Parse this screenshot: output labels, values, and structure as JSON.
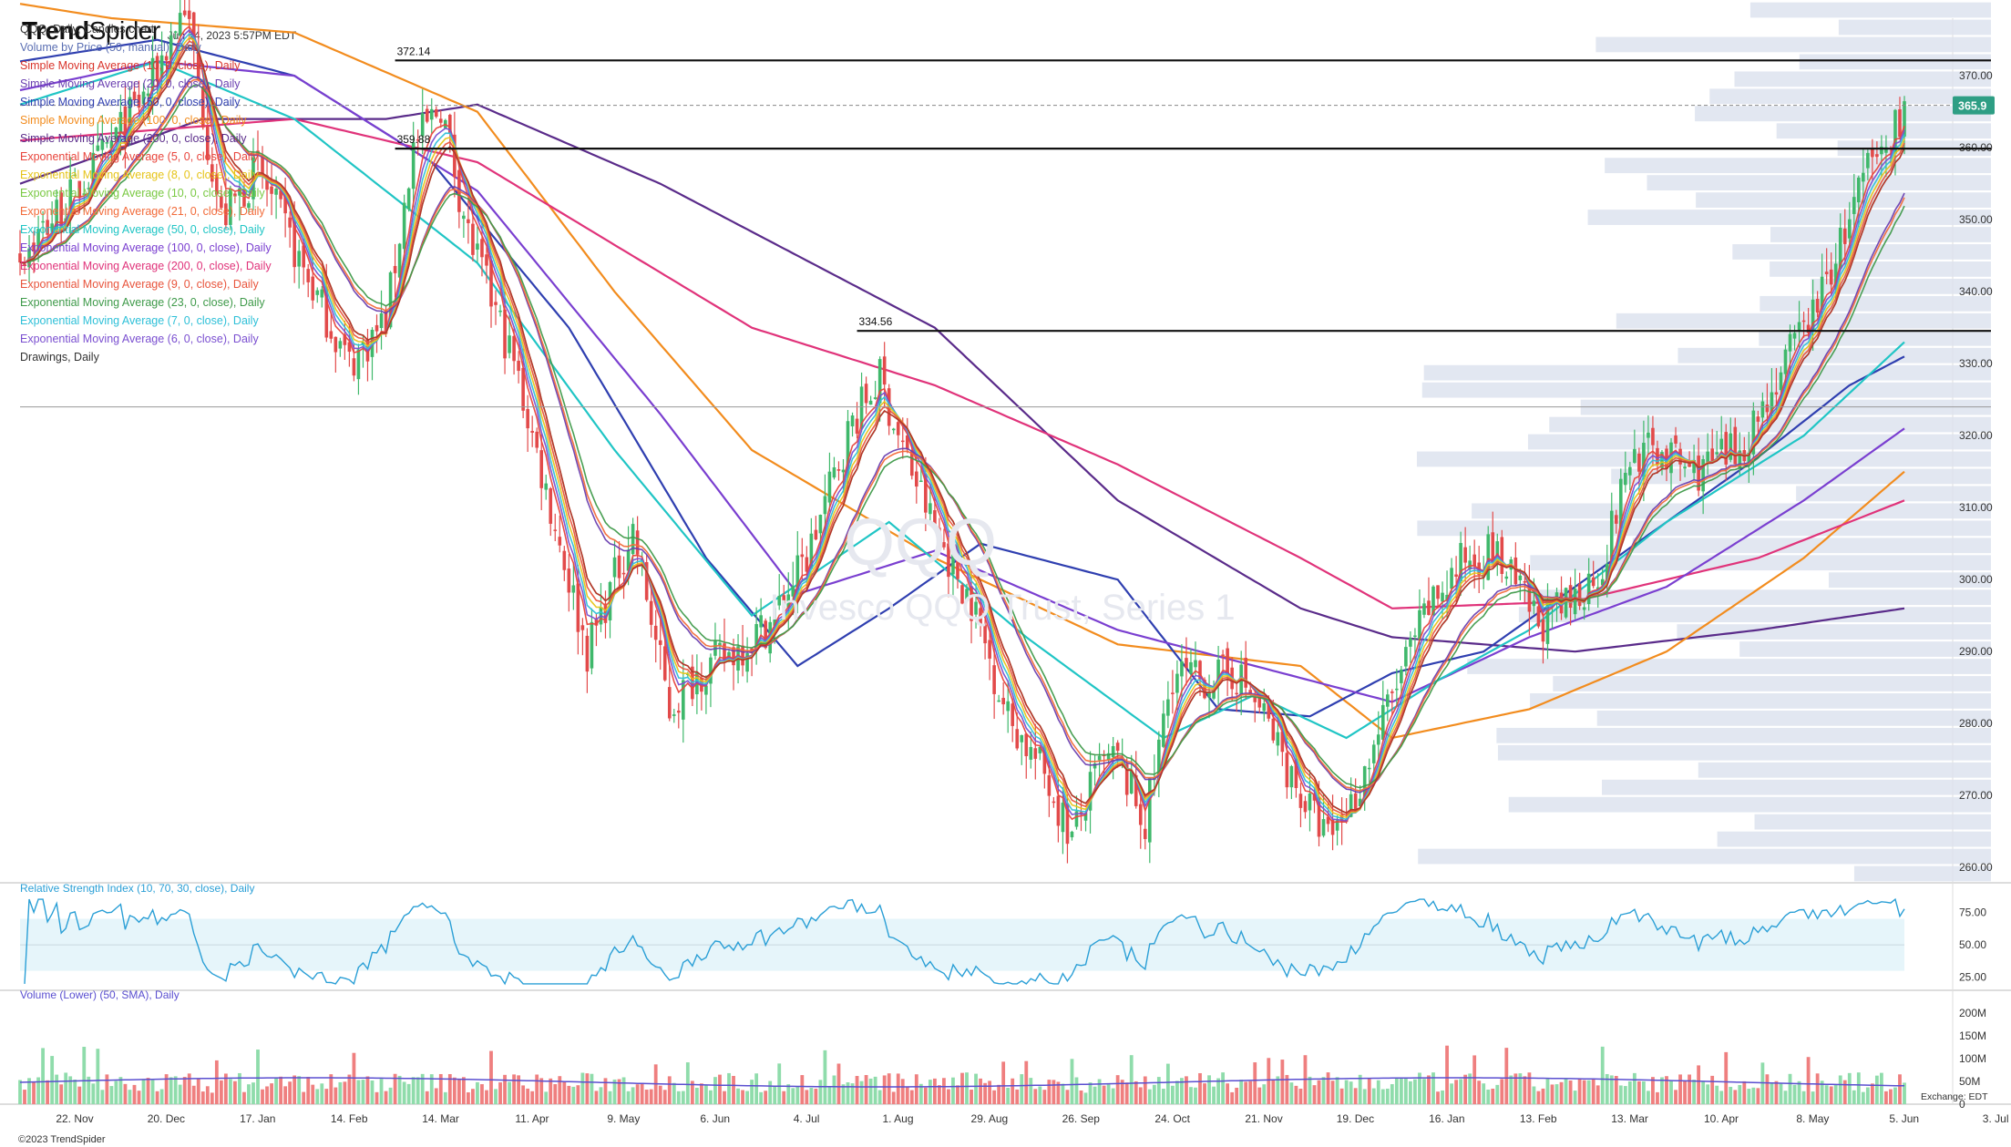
{
  "brand": {
    "logo_bold": "Trend",
    "logo_light": "Spider",
    "timestamp": "Jun 14, 2023 5:57PM EDT"
  },
  "legend": [
    {
      "text": "QQQ, Daily, Candles chart",
      "color": "#333333"
    },
    {
      "text": "Volume by Price (50, manual), Daily",
      "color": "#5b6fb3"
    },
    {
      "text": "Simple Moving Average (10, 0, close), Daily",
      "color": "#d9342b"
    },
    {
      "text": "Simple Moving Average (20, 0, close), Daily",
      "color": "#6a3fb0"
    },
    {
      "text": "Simple Moving Average (50, 0, close), Daily",
      "color": "#2f3fb0"
    },
    {
      "text": "Simple Moving Average (100, 0, close), Daily",
      "color": "#f28c1e"
    },
    {
      "text": "Simple Moving Average (200, 0, close), Daily",
      "color": "#5a2b8a"
    },
    {
      "text": "Exponential Moving Average (5, 0, close), Daily",
      "color": "#e8453c"
    },
    {
      "text": "Exponential Moving Average (8, 0, close), Daily",
      "color": "#e6c419"
    },
    {
      "text": "Exponential Moving Average (10, 0, close), Daily",
      "color": "#7ac943"
    },
    {
      "text": "Exponential Moving Average (21, 0, close), Daily",
      "color": "#f26b3a"
    },
    {
      "text": "Exponential Moving Average (50, 0, close), Daily",
      "color": "#20c5c5"
    },
    {
      "text": "Exponential Moving Average (100, 0, close), Daily",
      "color": "#7a3fd0"
    },
    {
      "text": "Exponential Moving Average (200, 0, close), Daily",
      "color": "#e0337a"
    },
    {
      "text": "Exponential Moving Average (9, 0, close), Daily",
      "color": "#e8543c"
    },
    {
      "text": "Exponential Moving Average (23, 0, close), Daily",
      "color": "#3f9a4a"
    },
    {
      "text": "Exponential Moving Average (7, 0, close), Daily",
      "color": "#2fc0d8"
    },
    {
      "text": "Exponential Moving Average (6, 0, close), Daily",
      "color": "#7a4fd0"
    },
    {
      "text": "Drawings, Daily",
      "color": "#333333"
    }
  ],
  "watermark": {
    "symbol": "QQQ",
    "name": "Invesco QQQ Trust, Series 1"
  },
  "chart_data": {
    "type": "candlestick",
    "symbol": "QQQ",
    "ylim": [
      258,
      378
    ],
    "y_ticks": [
      "260.00",
      "270.00",
      "280.00",
      "290.00",
      "300.00",
      "310.00",
      "320.00",
      "330.00",
      "340.00",
      "350.00",
      "360.00",
      "370.00"
    ],
    "y_tick_values": [
      260,
      270,
      280,
      290,
      300,
      310,
      320,
      330,
      340,
      350,
      360,
      370
    ],
    "x_labels": [
      "22. Nov",
      "20. Dec",
      "17. Jan",
      "14. Feb",
      "14. Mar",
      "11. Apr",
      "9. May",
      "6. Jun",
      "4. Jul",
      "1. Aug",
      "29. Aug",
      "26. Sep",
      "24. Oct",
      "21. Nov",
      "19. Dec",
      "16. Jan",
      "13. Feb",
      "13. Mar",
      "10. Apr",
      "8. May",
      "5. Jun",
      "3. Jul"
    ],
    "x_label_index": [
      0,
      20,
      40,
      60,
      80,
      100,
      120,
      140,
      160,
      180,
      200,
      220,
      240,
      260,
      280,
      300,
      320,
      340,
      360,
      380,
      400,
      420
    ],
    "n_bars": 413,
    "price_anchors": [
      [
        0,
        345
      ],
      [
        15,
        356
      ],
      [
        28,
        368
      ],
      [
        36,
        380
      ],
      [
        44,
        350
      ],
      [
        52,
        357
      ],
      [
        62,
        343
      ],
      [
        72,
        330
      ],
      [
        80,
        336
      ],
      [
        86,
        360
      ],
      [
        92,
        366
      ],
      [
        98,
        348
      ],
      [
        108,
        330
      ],
      [
        118,
        305
      ],
      [
        124,
        290
      ],
      [
        134,
        307
      ],
      [
        142,
        282
      ],
      [
        148,
        287
      ],
      [
        156,
        290
      ],
      [
        164,
        294
      ],
      [
        172,
        303
      ],
      [
        182,
        322
      ],
      [
        188,
        328
      ],
      [
        192,
        320
      ],
      [
        200,
        307
      ],
      [
        208,
        297
      ],
      [
        216,
        281
      ],
      [
        224,
        273
      ],
      [
        230,
        264
      ],
      [
        236,
        274
      ],
      [
        240,
        275
      ],
      [
        246,
        266
      ],
      [
        252,
        287
      ],
      [
        258,
        286
      ],
      [
        266,
        287
      ],
      [
        272,
        281
      ],
      [
        280,
        270
      ],
      [
        286,
        264
      ],
      [
        292,
        270
      ],
      [
        300,
        284
      ],
      [
        308,
        296
      ],
      [
        316,
        303
      ],
      [
        322,
        304
      ],
      [
        326,
        300
      ],
      [
        332,
        294
      ],
      [
        338,
        296
      ],
      [
        346,
        302
      ],
      [
        352,
        317
      ],
      [
        358,
        318
      ],
      [
        366,
        315
      ],
      [
        376,
        318
      ],
      [
        386,
        330
      ],
      [
        394,
        340
      ],
      [
        400,
        350
      ],
      [
        404,
        357
      ],
      [
        408,
        360
      ],
      [
        412,
        366
      ]
    ],
    "last_price": "365.9",
    "horizontal_levels": [
      {
        "value": 372.14,
        "label": "372.14",
        "from_index": 82
      },
      {
        "value": 359.88,
        "label": "359.88",
        "from_index": 82
      },
      {
        "value": 334.56,
        "label": "334.56",
        "from_index": 183
      }
    ],
    "dashed_level": 365.9,
    "ma_series": [
      {
        "name": "SMA 200",
        "color": "#5a2b8a",
        "anchors": [
          [
            0,
            355
          ],
          [
            40,
            364
          ],
          [
            80,
            364
          ],
          [
            100,
            366
          ],
          [
            140,
            355
          ],
          [
            200,
            335
          ],
          [
            240,
            311
          ],
          [
            280,
            296
          ],
          [
            300,
            292
          ],
          [
            340,
            290
          ],
          [
            380,
            293
          ],
          [
            412,
            296
          ]
        ]
      },
      {
        "name": "SMA 100",
        "color": "#f28c1e",
        "anchors": [
          [
            0,
            380
          ],
          [
            20,
            378
          ],
          [
            60,
            376
          ],
          [
            100,
            365
          ],
          [
            130,
            340
          ],
          [
            160,
            318
          ],
          [
            200,
            303
          ],
          [
            240,
            291
          ],
          [
            280,
            288
          ],
          [
            300,
            278
          ],
          [
            330,
            282
          ],
          [
            360,
            290
          ],
          [
            390,
            303
          ],
          [
            412,
            315
          ]
        ]
      },
      {
        "name": "EMA 200",
        "color": "#e0337a",
        "anchors": [
          [
            0,
            361
          ],
          [
            60,
            364
          ],
          [
            100,
            358
          ],
          [
            160,
            335
          ],
          [
            200,
            327
          ],
          [
            240,
            316
          ],
          [
            280,
            303
          ],
          [
            300,
            296
          ],
          [
            340,
            297
          ],
          [
            380,
            303
          ],
          [
            412,
            311
          ]
        ]
      },
      {
        "name": "SMA 50",
        "color": "#2f3fb0",
        "anchors": [
          [
            0,
            372
          ],
          [
            30,
            375
          ],
          [
            60,
            370
          ],
          [
            90,
            358
          ],
          [
            120,
            335
          ],
          [
            150,
            303
          ],
          [
            170,
            288
          ],
          [
            190,
            296
          ],
          [
            210,
            305
          ],
          [
            240,
            300
          ],
          [
            262,
            282
          ],
          [
            282,
            281
          ],
          [
            300,
            287
          ],
          [
            320,
            290
          ],
          [
            340,
            299
          ],
          [
            360,
            308
          ],
          [
            380,
            317
          ],
          [
            400,
            327
          ],
          [
            412,
            331
          ]
        ]
      },
      {
        "name": "EMA 100",
        "color": "#7a3fd0",
        "anchors": [
          [
            0,
            368
          ],
          [
            30,
            372
          ],
          [
            60,
            370
          ],
          [
            100,
            354
          ],
          [
            140,
            323
          ],
          [
            170,
            298
          ],
          [
            200,
            304
          ],
          [
            240,
            293
          ],
          [
            270,
            288
          ],
          [
            300,
            283
          ],
          [
            330,
            292
          ],
          [
            360,
            299
          ],
          [
            390,
            311
          ],
          [
            412,
            321
          ]
        ]
      },
      {
        "name": "EMA 50",
        "color": "#20c5c5",
        "anchors": [
          [
            0,
            366
          ],
          [
            30,
            372
          ],
          [
            60,
            364
          ],
          [
            100,
            344
          ],
          [
            130,
            318
          ],
          [
            160,
            295
          ],
          [
            190,
            308
          ],
          [
            220,
            292
          ],
          [
            250,
            278
          ],
          [
            270,
            284
          ],
          [
            290,
            278
          ],
          [
            310,
            286
          ],
          [
            330,
            293
          ],
          [
            360,
            308
          ],
          [
            390,
            320
          ],
          [
            412,
            333
          ]
        ]
      }
    ],
    "price_pane": {
      "ylim": [
        258,
        378
      ]
    },
    "rsi": {
      "title": "Relative Strength Index (10, 70, 30, close), Daily",
      "levels": [
        70,
        30
      ],
      "ylim": [
        15,
        90
      ],
      "y_ticks": [
        "75.00",
        "50.00",
        "25.00"
      ],
      "y_tick_values": [
        75,
        50,
        25
      ]
    },
    "volume": {
      "title": "Volume (Lower) (50, SMA), Daily",
      "ylim": [
        0,
        230
      ],
      "y_ticks": [
        "200M",
        "150M",
        "100M",
        "50M",
        "0"
      ],
      "y_tick_values": [
        200,
        150,
        100,
        50,
        0
      ]
    }
  },
  "footer": {
    "copyright": "©2023 TrendSpider",
    "exchange": "Exchange: EDT"
  }
}
